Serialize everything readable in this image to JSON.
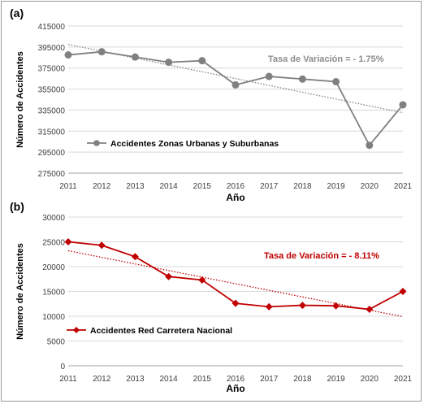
{
  "chart_data": [
    {
      "type": "line",
      "panel_label": "(a)",
      "xlabel": "Año",
      "ylabel": "Número de Accidentes",
      "x": [
        2011,
        2012,
        2013,
        2014,
        2015,
        2016,
        2017,
        2018,
        2019,
        2020,
        2021
      ],
      "ylim": [
        275000,
        415000
      ],
      "yticks": [
        275000,
        295000,
        315000,
        335000,
        355000,
        375000,
        395000,
        415000
      ],
      "ytick_labels": [
        "275000",
        "295000",
        "315000",
        "335000",
        "355000",
        "375000",
        "395000",
        "415000"
      ],
      "grid": "horizontal",
      "series": [
        {
          "name": "Accidentes Zonas Urbanas y Suburbanas",
          "values": [
            387500,
            390500,
            385500,
            380500,
            382000,
            359000,
            367000,
            364500,
            362000,
            301500,
            340000
          ],
          "color": "#808080",
          "marker": "circle"
        }
      ],
      "trendline": {
        "start": 397500,
        "end": 332500,
        "color": "#808080"
      },
      "annotation": "Tasa de Variación =  - 1.75%",
      "annotation_color": "#8c8c8c"
    },
    {
      "type": "line",
      "panel_label": "(b)",
      "xlabel": "Año",
      "ylabel": "Número de Accidentes",
      "x": [
        2011,
        2012,
        2013,
        2014,
        2015,
        2016,
        2017,
        2018,
        2019,
        2020,
        2021
      ],
      "ylim": [
        0,
        30000
      ],
      "yticks": [
        0,
        5000,
        10000,
        15000,
        20000,
        25000,
        30000
      ],
      "ytick_labels": [
        "0",
        "5000",
        "10000",
        "15000",
        "20000",
        "25000",
        "30000"
      ],
      "grid": "horizontal",
      "series": [
        {
          "name": "Accidentes Red Carretera Nacional",
          "values": [
            25000,
            24300,
            22000,
            18000,
            17300,
            12600,
            11900,
            12200,
            12100,
            11400,
            15000
          ],
          "color": "#c00000",
          "marker": "diamond"
        }
      ],
      "trendline": {
        "start": 23200,
        "end": 9900,
        "color": "#c00000"
      },
      "annotation": "Tasa de Variación =  - 8.11%",
      "annotation_color": "#c00000"
    }
  ]
}
